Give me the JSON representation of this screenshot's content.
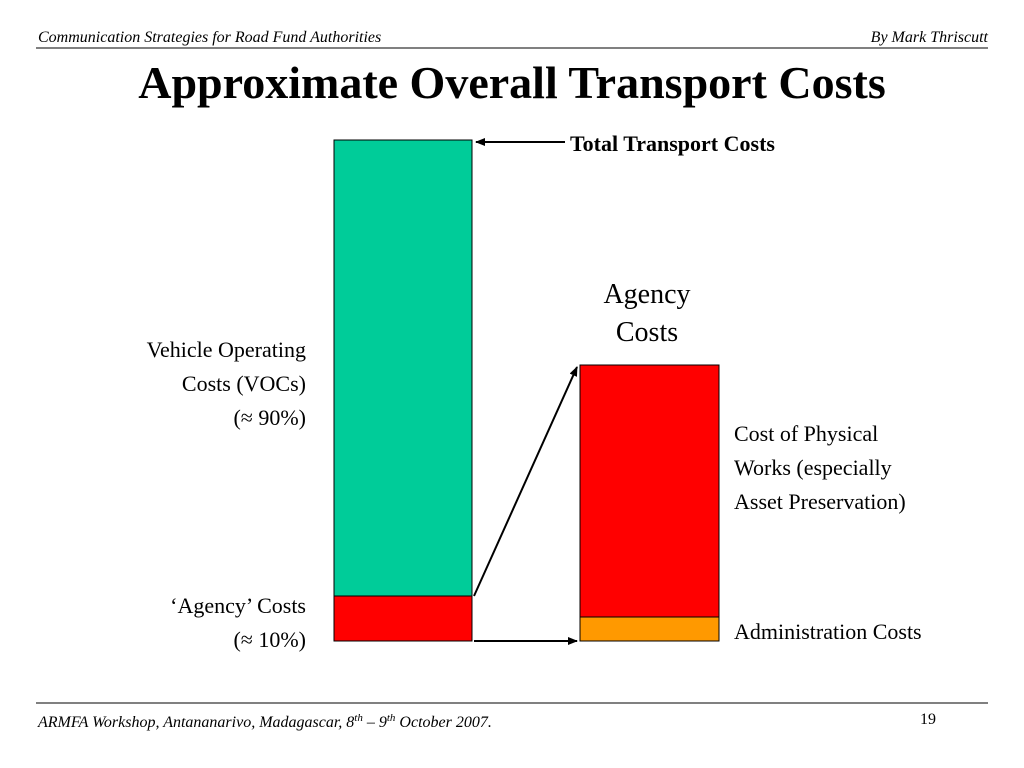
{
  "header": {
    "left": "Communication Strategies for Road Fund Authorities",
    "right": "By Mark Thriscutt"
  },
  "title": "Approximate Overall Transport Costs",
  "labels": {
    "total": "Total Transport Costs",
    "agency_costs": [
      "Agency",
      "Costs"
    ],
    "vocs": [
      "Vehicle Operating",
      "Costs (VOCs)",
      "(≈ 90%)"
    ],
    "agency_share": [
      "‘Agency’ Costs",
      "(≈ 10%)"
    ],
    "physical_works": [
      "Cost of Physical",
      "Works (especially",
      "Asset Preservation)"
    ],
    "administration": "Administration Costs"
  },
  "footer": {
    "parts": [
      "ARMFA Workshop, Antananarivo, Madagascar, 8",
      "th",
      " – 9",
      "th",
      " October 2007."
    ],
    "page": "19"
  }
}
